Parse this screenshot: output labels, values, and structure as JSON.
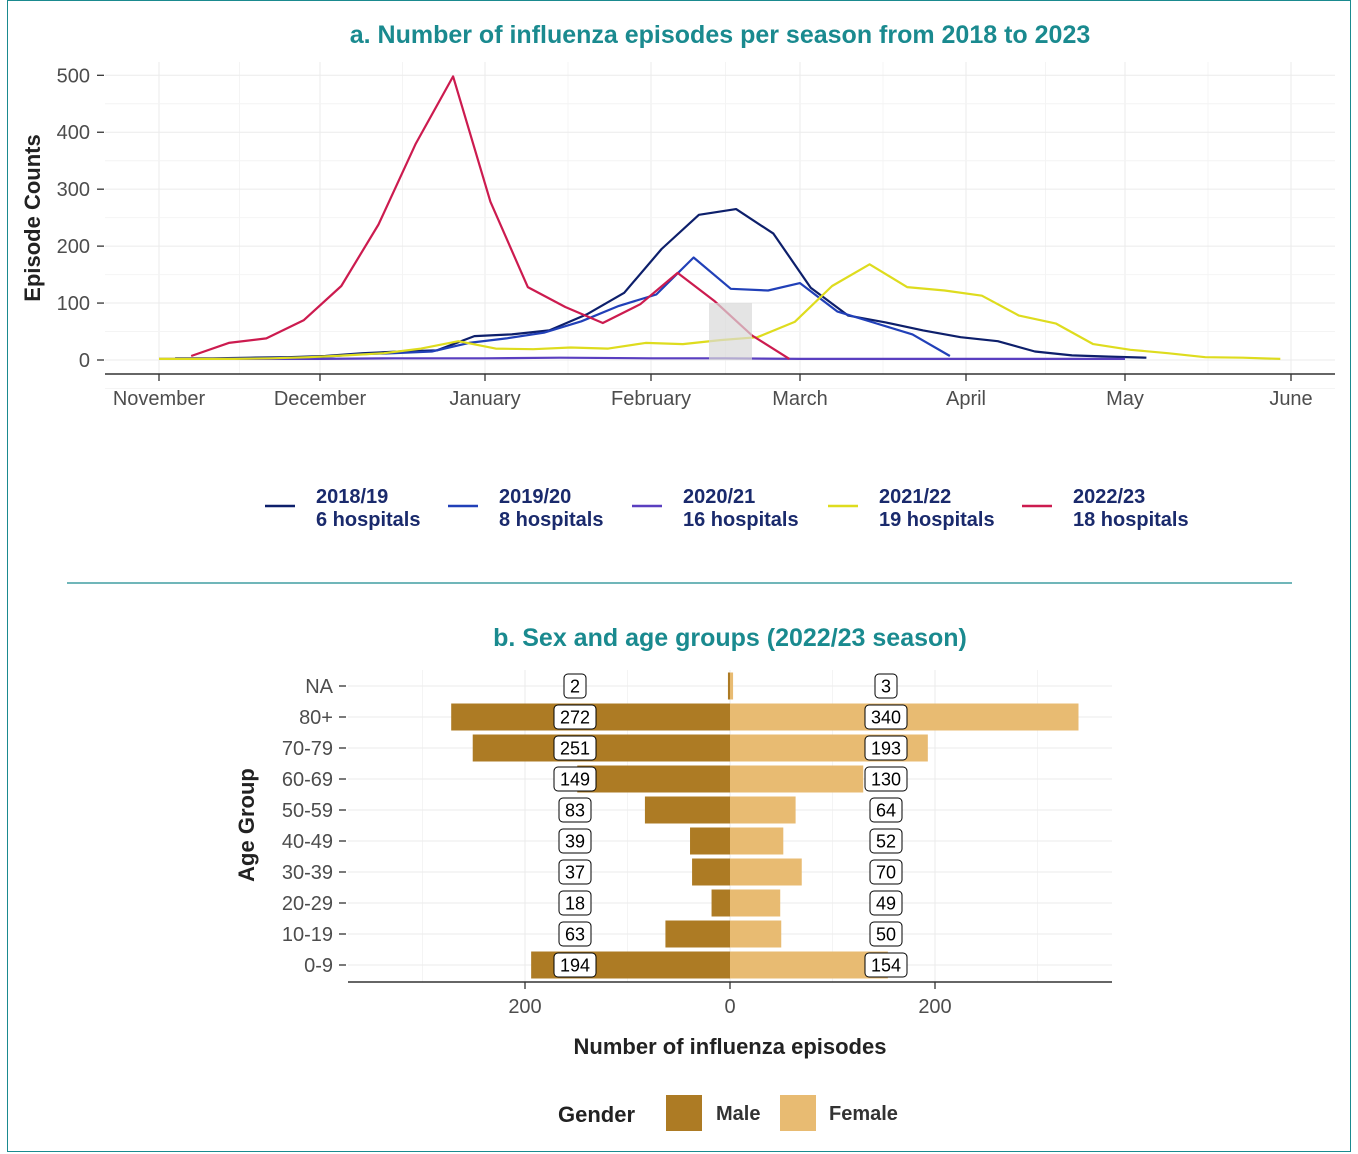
{
  "chart_data": [
    {
      "type": "line",
      "title": "a. Number of influenza episodes per season from 2018 to 2023",
      "xlabel": "",
      "ylabel": "Episode Counts",
      "x_ticks": [
        "November",
        "December",
        "January",
        "February",
        "March",
        "April",
        "May",
        "June"
      ],
      "y_ticks": [
        "0",
        "100",
        "200",
        "300",
        "400",
        "500"
      ],
      "ylim": [
        0,
        520
      ],
      "grid": true,
      "legend_position": "bottom",
      "series": [
        {
          "name": "2018/19",
          "name2": "6 hospitals",
          "color": "#0d1f6b",
          "x": [
            "2018-11-04",
            "2018-11-11",
            "2018-11-18",
            "2018-11-25",
            "2018-12-02",
            "2018-12-09",
            "2018-12-16",
            "2018-12-23",
            "2018-12-30",
            "2019-01-06",
            "2019-01-13",
            "2019-01-20",
            "2019-01-27",
            "2019-02-03",
            "2019-02-10",
            "2019-02-17",
            "2019-02-24",
            "2019-03-03",
            "2019-03-10",
            "2019-03-17",
            "2019-03-24",
            "2019-03-31",
            "2019-04-07",
            "2019-04-14",
            "2019-04-21",
            "2019-04-28",
            "2019-05-05"
          ],
          "values": [
            3,
            3,
            4,
            5,
            7,
            12,
            15,
            17,
            42,
            45,
            52,
            80,
            118,
            195,
            255,
            265,
            222,
            127,
            78,
            66,
            52,
            40,
            33,
            15,
            8,
            6,
            4
          ]
        },
        {
          "name": "2019/20",
          "name2": "8 hospitals",
          "color": "#2140b8",
          "x": [
            "2019-11-10",
            "2019-11-17",
            "2019-11-24",
            "2019-12-01",
            "2019-12-08",
            "2019-12-15",
            "2019-12-22",
            "2019-12-29",
            "2020-01-05",
            "2020-01-12",
            "2020-01-19",
            "2020-01-26",
            "2020-02-02",
            "2020-02-09",
            "2020-02-16",
            "2020-02-23",
            "2020-03-01",
            "2020-03-08",
            "2020-03-15",
            "2020-03-22",
            "2020-03-29"
          ],
          "values": [
            2,
            3,
            3,
            5,
            10,
            12,
            15,
            30,
            38,
            48,
            68,
            95,
            115,
            180,
            125,
            122,
            135,
            85,
            65,
            45,
            7
          ]
        },
        {
          "name": "2020/21",
          "name2": "16 hospitals",
          "color": "#5a3fc0",
          "x": [
            "2020-11-01",
            "2020-11-15",
            "2020-12-01",
            "2020-12-15",
            "2021-01-01",
            "2021-01-15",
            "2021-02-01",
            "2021-02-15",
            "2021-03-01",
            "2021-03-15",
            "2021-04-01",
            "2021-04-15",
            "2021-05-01"
          ],
          "values": [
            2,
            2,
            2,
            3,
            3,
            4,
            3,
            3,
            2,
            2,
            2,
            2,
            2
          ]
        },
        {
          "name": "2021/22",
          "name2": "19 hospitals",
          "color": "#dedc1e",
          "x": [
            "2021-11-01",
            "2021-11-08",
            "2021-11-15",
            "2021-11-22",
            "2021-11-29",
            "2021-12-06",
            "2021-12-13",
            "2021-12-20",
            "2021-12-27",
            "2022-01-03",
            "2022-01-10",
            "2022-01-17",
            "2022-01-24",
            "2022-01-31",
            "2022-02-07",
            "2022-02-14",
            "2022-02-21",
            "2022-02-28",
            "2022-03-07",
            "2022-03-14",
            "2022-03-21",
            "2022-03-28",
            "2022-04-04",
            "2022-04-11",
            "2022-04-18",
            "2022-04-25",
            "2022-05-02",
            "2022-05-09",
            "2022-05-16",
            "2022-05-23",
            "2022-05-30"
          ],
          "values": [
            2,
            2,
            2,
            3,
            5,
            8,
            12,
            20,
            33,
            20,
            19,
            22,
            20,
            30,
            28,
            35,
            40,
            67,
            130,
            168,
            128,
            122,
            113,
            78,
            64,
            28,
            18,
            12,
            5,
            4,
            2
          ]
        },
        {
          "name": "2022/23",
          "name2": "18 hospitals",
          "color": "#cc1b4f",
          "x": [
            "2022-11-07",
            "2022-11-14",
            "2022-11-21",
            "2022-11-28",
            "2022-12-05",
            "2022-12-12",
            "2022-12-19",
            "2022-12-26",
            "2023-01-02",
            "2023-01-09",
            "2023-01-16",
            "2023-01-23",
            "2023-01-30",
            "2023-02-06",
            "2023-02-13",
            "2023-02-20",
            "2023-02-27"
          ],
          "values": [
            7,
            30,
            38,
            70,
            130,
            238,
            380,
            498,
            278,
            128,
            93,
            65,
            98,
            153,
            103,
            43,
            2
          ]
        }
      ]
    },
    {
      "type": "bar",
      "orientation": "horizontal",
      "title": "b. Sex and age groups (2022/23 season)",
      "xlabel": "Number of influenza episodes",
      "ylabel": "Age Group",
      "categories": [
        "NA",
        "80+",
        "70-79",
        "60-69",
        "50-59",
        "40-49",
        "30-39",
        "20-29",
        "10-19",
        "0-9"
      ],
      "x_ticks": [
        "200",
        "0",
        "200"
      ],
      "legend_title": "Gender",
      "legend_position": "bottom",
      "series": [
        {
          "name": "Male",
          "color": "#ad7b24",
          "labels": [
            "2",
            "272",
            "251",
            "149",
            "83",
            "39",
            "37",
            "18",
            "63",
            "194"
          ],
          "values": [
            2,
            272,
            251,
            149,
            83,
            39,
            37,
            18,
            63,
            194
          ]
        },
        {
          "name": "Female",
          "color": "#e8bb72",
          "labels": [
            "3",
            "340",
            "193",
            "130",
            "64",
            "52",
            "70",
            "49",
            "50",
            "154"
          ],
          "values": [
            3,
            340,
            193,
            130,
            64,
            52,
            70,
            49,
            50,
            154
          ]
        }
      ]
    }
  ]
}
